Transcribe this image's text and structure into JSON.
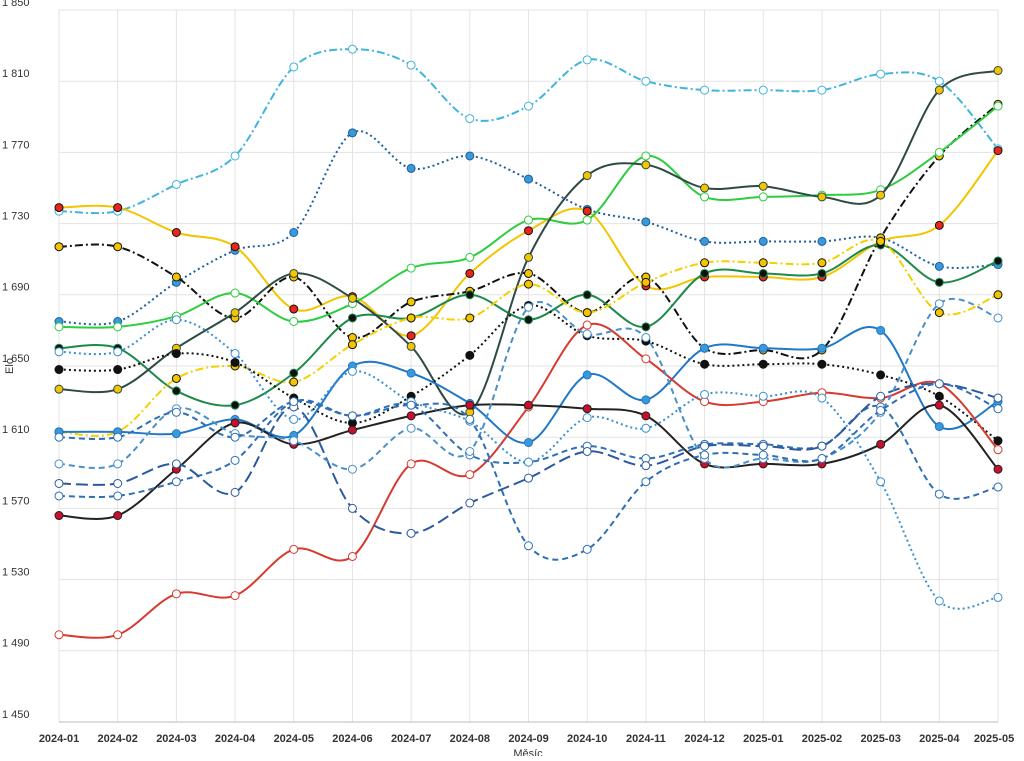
{
  "chart_data": {
    "type": "line",
    "y_label": "Elo",
    "x_label": "Měsíc",
    "categories": [
      "2024-01",
      "2024-02",
      "2024-03",
      "2024-04",
      "2024-05",
      "2024-06",
      "2024-07",
      "2024-08",
      "2024-09",
      "2024-10",
      "2024-11",
      "2024-12",
      "2025-01",
      "2025-02",
      "2025-03",
      "2025-04",
      "2025-05"
    ],
    "ylim": [
      1450,
      1850
    ],
    "yticks": [
      {
        "value": 1450,
        "label": "1 450"
      },
      {
        "value": 1490,
        "label": "1 490"
      },
      {
        "value": 1530,
        "label": "1 530"
      },
      {
        "value": 1570,
        "label": "1 570"
      },
      {
        "value": 1610,
        "label": "1 610"
      },
      {
        "value": 1650,
        "label": "1 650"
      },
      {
        "value": 1690,
        "label": "1 690"
      },
      {
        "value": 1730,
        "label": "1 730"
      },
      {
        "value": 1770,
        "label": "1 770"
      },
      {
        "value": 1810,
        "label": "1 810"
      },
      {
        "value": 1850,
        "label": "1 850"
      }
    ],
    "grid": true,
    "series": [
      {
        "color": "#3fb4dc",
        "marker": "#ffffff",
        "dash": "dash-dot",
        "values": [
          1737,
          1737,
          1752,
          1768,
          1818,
          1828,
          1819,
          1789,
          1796,
          1822,
          1810,
          1805,
          1805,
          1805,
          1814,
          1810,
          1772
        ]
      },
      {
        "color": "#1f5fa0",
        "marker": "#3a9ad9",
        "dash": "dotted",
        "values": [
          1675,
          1675,
          1697,
          1715,
          1725,
          1781,
          1761,
          1768,
          1755,
          1738,
          1731,
          1720,
          1720,
          1720,
          1722,
          1706,
          1707
        ]
      },
      {
        "color": "#f2c500",
        "marker": "#e8261c",
        "dash": "solid",
        "values": [
          1739,
          1739,
          1725,
          1717,
          1682,
          1689,
          1667,
          1702,
          1726,
          1737,
          1695,
          1700,
          1700,
          1700,
          1720,
          1729,
          1771
        ]
      },
      {
        "color": "#111111",
        "marker": "#f2c500",
        "dash": "dash-dot",
        "values": [
          1717,
          1717,
          1700,
          1677,
          1700,
          1666,
          1686,
          1692,
          1702,
          1680,
          1700,
          1660,
          1659,
          1659,
          1722,
          1768,
          1797
        ]
      },
      {
        "color": "#2ecc40",
        "marker": "#ffffff",
        "dash": "solid",
        "values": [
          1672,
          1672,
          1678,
          1691,
          1675,
          1685,
          1705,
          1711,
          1732,
          1732,
          1768,
          1745,
          1745,
          1746,
          1749,
          1770,
          1796
        ]
      },
      {
        "color": "#1e8a4a",
        "marker": "#111111",
        "dash": "solid",
        "values": [
          1660,
          1660,
          1636,
          1628,
          1646,
          1677,
          1677,
          1690,
          1676,
          1690,
          1672,
          1702,
          1702,
          1702,
          1718,
          1697,
          1709
        ]
      },
      {
        "color": "#2f4a44",
        "marker": "#f2c500",
        "dash": "solid",
        "values": [
          1637,
          1637,
          1660,
          1680,
          1702,
          1688,
          1661,
          1624,
          1711,
          1757,
          1763,
          1750,
          1751,
          1745,
          1746,
          1805,
          1816
        ]
      },
      {
        "color": "#f5d000",
        "marker": "#f2c500",
        "dash": "dash-dot",
        "values": [
          1613,
          1613,
          1643,
          1650,
          1641,
          1662,
          1677,
          1677,
          1696,
          1680,
          1697,
          1708,
          1708,
          1708,
          1720,
          1680,
          1690
        ]
      },
      {
        "color": "#111111",
        "marker": "#111111",
        "dash": "dotted",
        "values": [
          1648,
          1648,
          1657,
          1652,
          1632,
          1618,
          1633,
          1656,
          1684,
          1667,
          1664,
          1651,
          1651,
          1651,
          1645,
          1633,
          1608
        ]
      },
      {
        "color": "#1f78c8",
        "marker": "#3a9ad9",
        "dash": "solid",
        "values": [
          1613,
          1613,
          1612,
          1620,
          1611,
          1650,
          1646,
          1629,
          1607,
          1645,
          1631,
          1660,
          1660,
          1660,
          1670,
          1616,
          1630
        ]
      },
      {
        "color": "#d63a2f",
        "marker": "#ffffff",
        "dash": "solid",
        "values": [
          1499,
          1499,
          1522,
          1521,
          1547,
          1543,
          1595,
          1589,
          1627,
          1673,
          1654,
          1630,
          1630,
          1635,
          1632,
          1640,
          1603
        ]
      },
      {
        "color": "#222222",
        "marker": "#c8102e",
        "dash": "solid",
        "values": [
          1566,
          1566,
          1592,
          1618,
          1606,
          1614,
          1622,
          1628,
          1628,
          1626,
          1622,
          1595,
          1595,
          1595,
          1606,
          1628,
          1592
        ]
      },
      {
        "color": "#2e6fb5",
        "marker": "#ffffff",
        "dash": "dashed",
        "values": [
          1577,
          1577,
          1585,
          1597,
          1630,
          1622,
          1628,
          1600,
          1596,
          1605,
          1598,
          1606,
          1606,
          1605,
          1627,
          1578,
          1582
        ]
      },
      {
        "color": "#2b5a9e",
        "marker": "#ffffff",
        "dash": "long-dash",
        "values": [
          1584,
          1584,
          1595,
          1579,
          1627,
          1570,
          1556,
          1573,
          1587,
          1602,
          1594,
          1605,
          1605,
          1605,
          1633,
          1640,
          1632
        ]
      },
      {
        "color": "#4a90c8",
        "marker": "#ffffff",
        "dash": "dashed",
        "values": [
          1595,
          1595,
          1626,
          1612,
          1608,
          1592,
          1615,
          1602,
          1683,
          1668,
          1666,
          1598,
          1598,
          1598,
          1624,
          1685,
          1677
        ]
      },
      {
        "color": "#3a8fd0",
        "marker": "#ffffff",
        "dash": "dotted",
        "values": [
          1658,
          1658,
          1676,
          1657,
          1620,
          1647,
          1630,
          1619,
          1596,
          1621,
          1615,
          1634,
          1633,
          1632,
          1585,
          1518,
          1520
        ]
      },
      {
        "color": "#2e6fb5",
        "marker": "#ffffff",
        "dash": "dashed",
        "values": [
          1610,
          1610,
          1624,
          1610,
          1630,
          1622,
          1628,
          1620,
          1549,
          1547,
          1585,
          1600,
          1600,
          1598,
          1625,
          1640,
          1626
        ]
      }
    ]
  }
}
